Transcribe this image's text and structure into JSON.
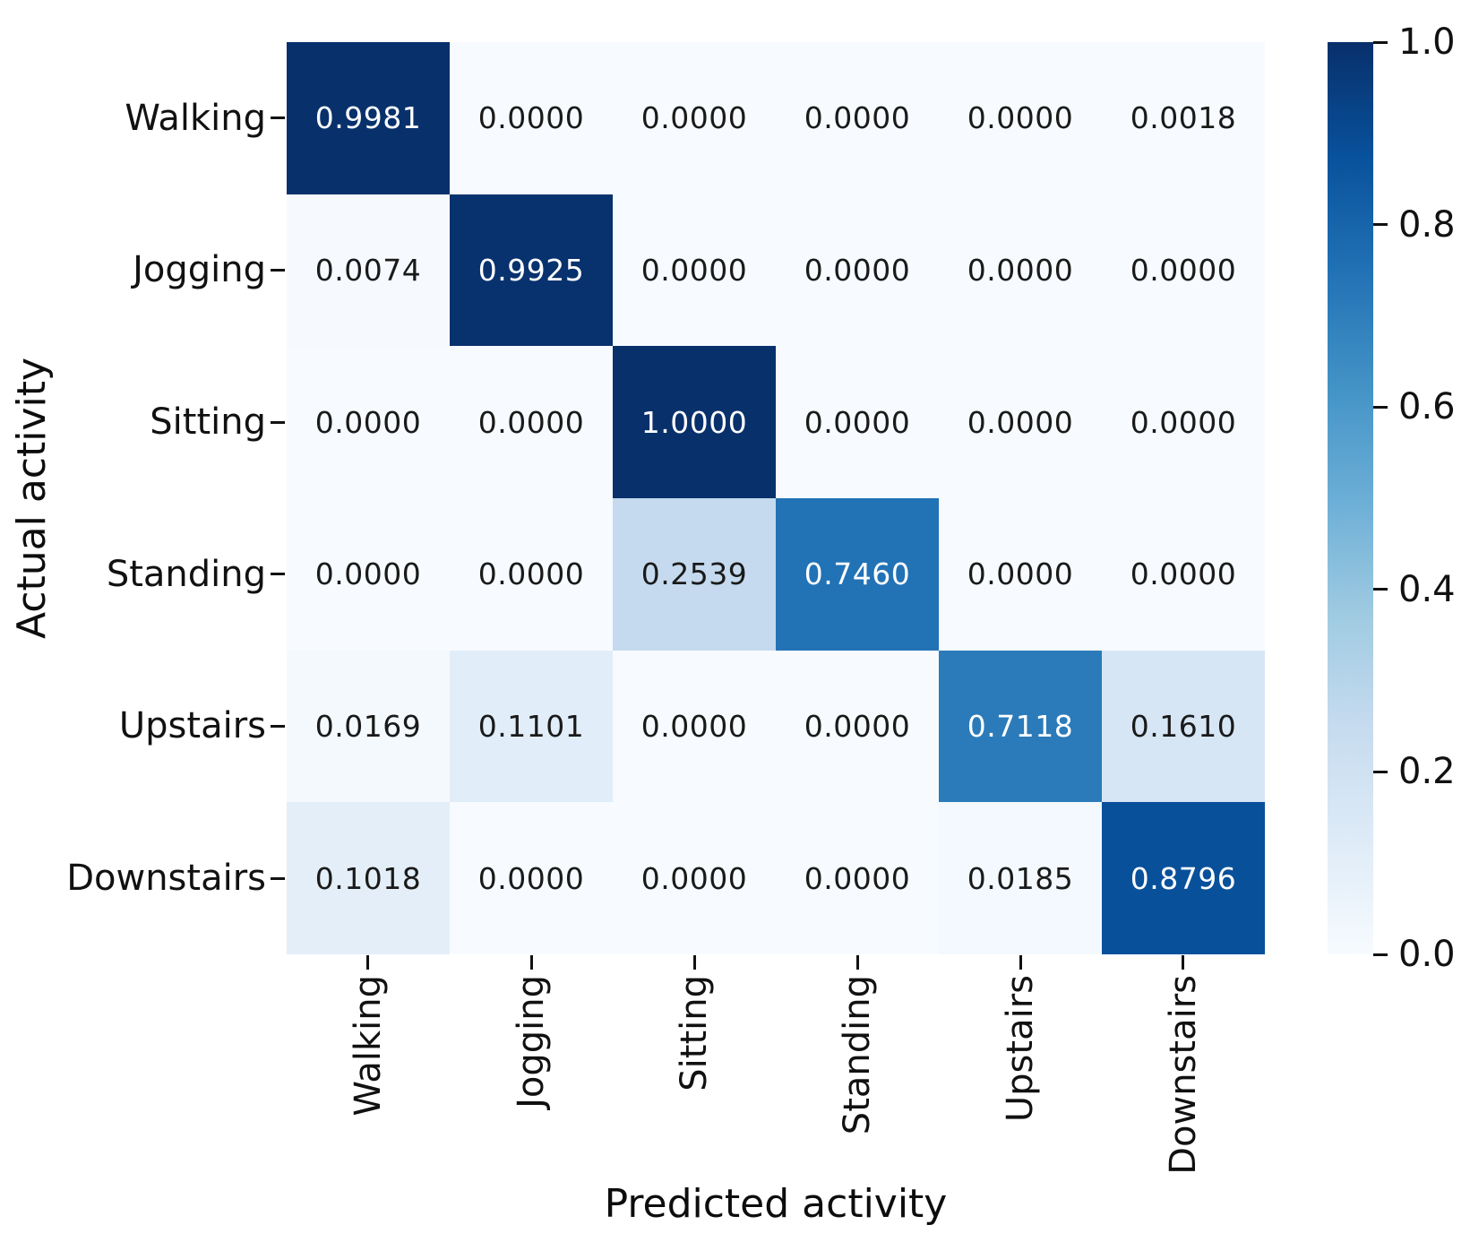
{
  "figure": {
    "background_color": "#ffffff",
    "tick_color": "#111111",
    "label_color": "#0d0d0d"
  },
  "chart_data": {
    "type": "heatmap",
    "title": "",
    "xlabel": "Predicted activity",
    "ylabel": "Actual activity",
    "x_categories": [
      "Walking",
      "Jogging",
      "Sitting",
      "Standing",
      "Upstairs",
      "Downstairs"
    ],
    "y_categories": [
      "Walking",
      "Jogging",
      "Sitting",
      "Standing",
      "Upstairs",
      "Downstairs"
    ],
    "matrix": [
      [
        0.9981,
        0.0,
        0.0,
        0.0,
        0.0,
        0.0018
      ],
      [
        0.0074,
        0.9925,
        0.0,
        0.0,
        0.0,
        0.0
      ],
      [
        0.0,
        0.0,
        1.0,
        0.0,
        0.0,
        0.0
      ],
      [
        0.0,
        0.0,
        0.2539,
        0.746,
        0.0,
        0.0
      ],
      [
        0.0169,
        0.1101,
        0.0,
        0.0,
        0.7118,
        0.161
      ],
      [
        0.1018,
        0.0,
        0.0,
        0.0,
        0.0185,
        0.8796
      ]
    ],
    "value_decimals": 4,
    "vmin": 0.0,
    "vmax": 1.0,
    "colormap": "Blues",
    "colormap_stops": [
      {
        "pos": 0.0,
        "color": "#f7fbff"
      },
      {
        "pos": 0.125,
        "color": "#deebf7"
      },
      {
        "pos": 0.25,
        "color": "#c6dbef"
      },
      {
        "pos": 0.375,
        "color": "#9ecae1"
      },
      {
        "pos": 0.5,
        "color": "#6baed6"
      },
      {
        "pos": 0.625,
        "color": "#4292c6"
      },
      {
        "pos": 0.75,
        "color": "#2171b5"
      },
      {
        "pos": 0.875,
        "color": "#08519c"
      },
      {
        "pos": 1.0,
        "color": "#08306b"
      }
    ],
    "annotation_text_light": "#ffffff",
    "annotation_text_dark": "#1a1a1a",
    "colorbar": {
      "tick_values": [
        1.0,
        0.8,
        0.6,
        0.4,
        0.2,
        0.0
      ],
      "tick_labels": [
        "1.0",
        "0.8",
        "0.6",
        "0.4",
        "0.2",
        "0.0"
      ],
      "orientation": "vertical",
      "position": "right"
    },
    "grid": false,
    "legend": false
  }
}
